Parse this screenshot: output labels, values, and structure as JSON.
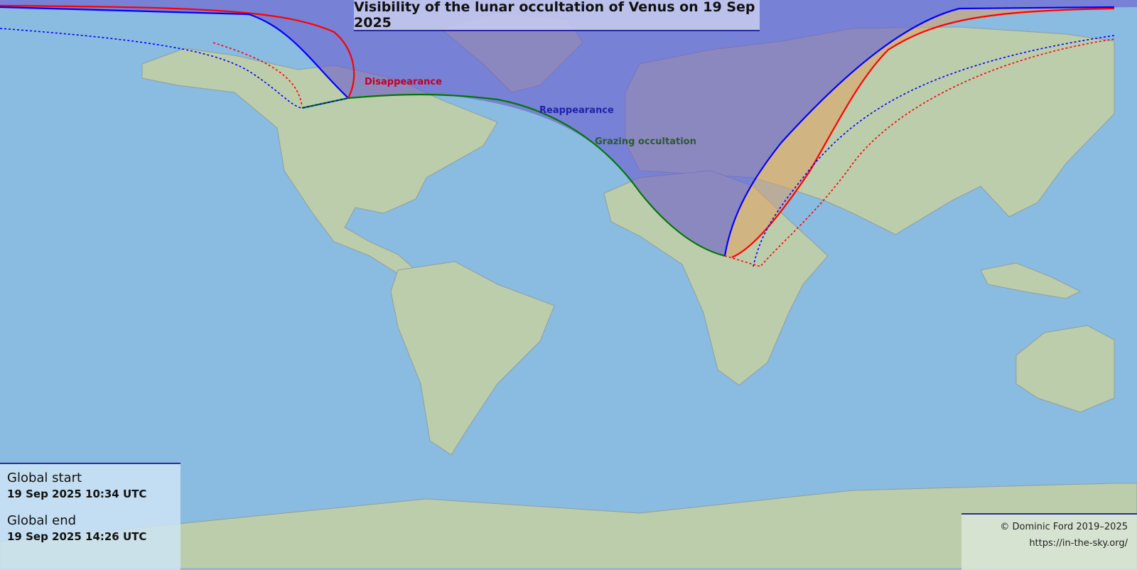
{
  "title": "Visibility of the lunar occultation of Venus on 19 Sep 2025",
  "labels": {
    "disappearance": "Disappearance",
    "reappearance": "Reappearance",
    "grazing": "Grazing occultation"
  },
  "global_start": {
    "label": "Global start",
    "value": "19 Sep 2025 10:34 UTC"
  },
  "global_end": {
    "label": "Global end",
    "value": "19 Sep 2025 14:26 UTC"
  },
  "credit": {
    "copyright": "© Dominic Ford 2019–2025",
    "url": "https://in-the-sky.org/"
  },
  "colors": {
    "ocean": "#8abbe0",
    "land": "#bccdac",
    "visibility_shade": "#6a5acd",
    "disappearance": "#ff0000",
    "reappearance": "#0000ff",
    "grazing": "#007700"
  }
}
